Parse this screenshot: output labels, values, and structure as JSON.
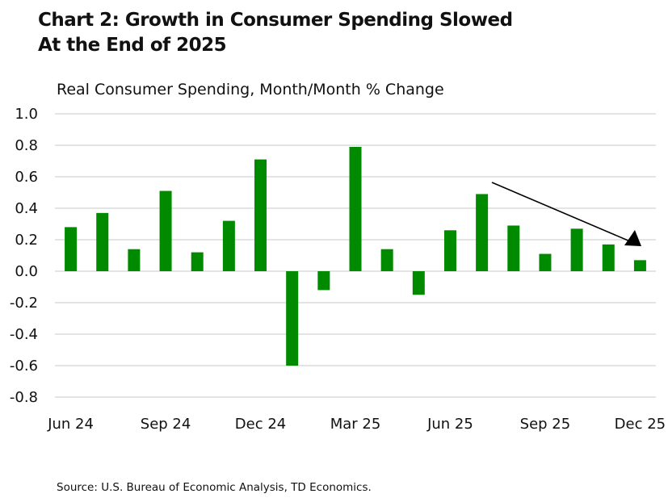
{
  "chart_data": {
    "type": "bar",
    "title": "Chart 2: Growth in Consumer Spending Slowed At the End of 2025",
    "title_lines": [
      "Chart 2: Growth in Consumer Spending Slowed",
      "At the End of 2025"
    ],
    "ylabel": "Real Consumer Spending, Month/Month % Change",
    "xlabel": "",
    "categories": [
      "Jun 24",
      "Jul 24",
      "Aug 24",
      "Sep 24",
      "Oct 24",
      "Nov 24",
      "Dec 24",
      "Jan 25",
      "Feb 25",
      "Mar 25",
      "Apr 25",
      "May 25",
      "Jun 25",
      "Jul 25",
      "Aug 25",
      "Sep 25",
      "Oct 25",
      "Nov 25",
      "Dec 25"
    ],
    "values": [
      0.28,
      0.37,
      0.14,
      0.51,
      0.12,
      0.32,
      0.71,
      -0.6,
      -0.12,
      0.79,
      0.14,
      -0.15,
      0.26,
      0.49,
      0.29,
      0.11,
      0.27,
      0.17,
      0.07
    ],
    "x_tick_labels": [
      "Jun 24",
      "Sep 24",
      "Dec 24",
      "Mar 25",
      "Jun 25",
      "Sep 25",
      "Dec 25"
    ],
    "y_tick_labels": [
      "1.0",
      "0.8",
      "0.6",
      "0.4",
      "0.2",
      "0.0",
      "-0.2",
      "-0.4",
      "-0.6",
      "-0.8"
    ],
    "ylim": [
      -0.8,
      1.0
    ],
    "grid": true,
    "bar_color": "#008a00",
    "annotation": "downward trend arrow from Jul 25 to Dec 25"
  },
  "source": "Source: U.S. Bureau of Economic Analysis, TD Economics."
}
